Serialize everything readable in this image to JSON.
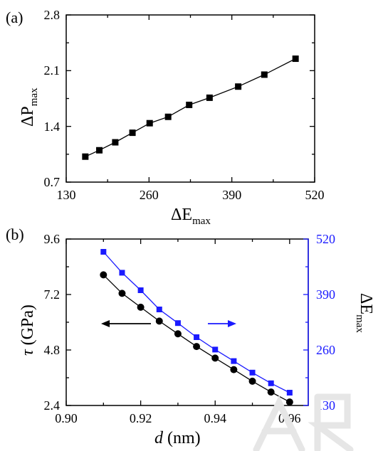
{
  "panel_labels": {
    "a": "(a)",
    "b": "(b)"
  },
  "arrow_colors": {
    "left": "#000000",
    "right": "#1a1aff"
  },
  "chart_data": [
    {
      "type": "line",
      "panel": "(a)",
      "xlabel": "ΔE",
      "xlabel_sub": "max",
      "ylabel": "ΔP",
      "ylabel_sub": "max",
      "xlim": [
        130,
        520
      ],
      "ylim": [
        0.7,
        2.8
      ],
      "xticks": [
        "130",
        "260",
        "390",
        "520"
      ],
      "yticks": [
        "0.7",
        "1.4",
        "2.1",
        "2.8"
      ],
      "series": [
        {
          "marker": "square",
          "color": "#000000",
          "x": [
            160,
            182,
            207,
            234,
            261,
            290,
            323,
            355,
            400,
            441,
            490
          ],
          "y": [
            1.02,
            1.1,
            1.2,
            1.32,
            1.44,
            1.52,
            1.67,
            1.76,
            1.9,
            2.05,
            2.25
          ]
        }
      ]
    },
    {
      "type": "line",
      "panel": "(b)",
      "xlabel": "d",
      "xlabel_unit": " (nm)",
      "ylabel": "τ",
      "ylabel_unit": " (GPa)",
      "y2label": "ΔE",
      "y2label_sub": "max",
      "xlim": [
        0.9,
        0.965
      ],
      "ylim": [
        2.4,
        9.6
      ],
      "y2lim": [
        130,
        520
      ],
      "xticks": [
        "0.90",
        "0.92",
        "0.94",
        "0.96"
      ],
      "yticks": [
        "2.4",
        "4.8",
        "7.2",
        "9.6"
      ],
      "y2ticks": [
        "130",
        "260",
        "390",
        "520"
      ],
      "series": [
        {
          "axis": "left",
          "marker": "circle",
          "color": "#000000",
          "x": [
            0.91,
            0.915,
            0.92,
            0.925,
            0.93,
            0.935,
            0.94,
            0.945,
            0.95,
            0.955,
            0.96
          ],
          "y": [
            8.05,
            7.25,
            6.65,
            6.05,
            5.5,
            4.95,
            4.45,
            3.95,
            3.45,
            2.98,
            2.55
          ]
        },
        {
          "axis": "right",
          "marker": "square",
          "color": "#1a1aff",
          "x": [
            0.91,
            0.915,
            0.92,
            0.925,
            0.93,
            0.935,
            0.94,
            0.945,
            0.95,
            0.955,
            0.96
          ],
          "y": [
            490,
            441,
            400,
            355,
            323,
            290,
            261,
            234,
            207,
            182,
            160
          ]
        }
      ]
    }
  ]
}
